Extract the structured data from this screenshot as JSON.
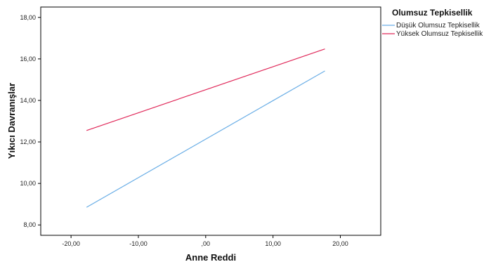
{
  "chart_data": {
    "type": "line",
    "xlabel": "Anne Reddi",
    "ylabel": "Yıkıcı Davranışlar",
    "xlim": [
      -24.5,
      26
    ],
    "ylim": [
      7.5,
      18.5
    ],
    "x_ticks": [
      -20,
      -10,
      0,
      10,
      20
    ],
    "x_tick_labels": [
      "-20,00",
      "-10,00",
      ",00",
      "10,00",
      "20,00"
    ],
    "y_ticks": [
      8,
      10,
      12,
      14,
      16,
      18
    ],
    "y_tick_labels": [
      "8,00",
      "10,00",
      "12,00",
      "14,00",
      "16,00",
      "18,00"
    ],
    "grid": false,
    "legend": {
      "title": "Olumsuz Tepkisellik",
      "position": "right"
    },
    "series": [
      {
        "name": "Düşük Olumsuz Tepkisellik",
        "color": "#6aaee6",
        "x": [
          -17.7,
          17.7
        ],
        "y": [
          8.85,
          15.42
        ]
      },
      {
        "name": "Yüksek Olumsuz Tepkisellik",
        "color": "#e0295a",
        "x": [
          -17.7,
          17.7
        ],
        "y": [
          12.55,
          16.48
        ]
      }
    ]
  }
}
